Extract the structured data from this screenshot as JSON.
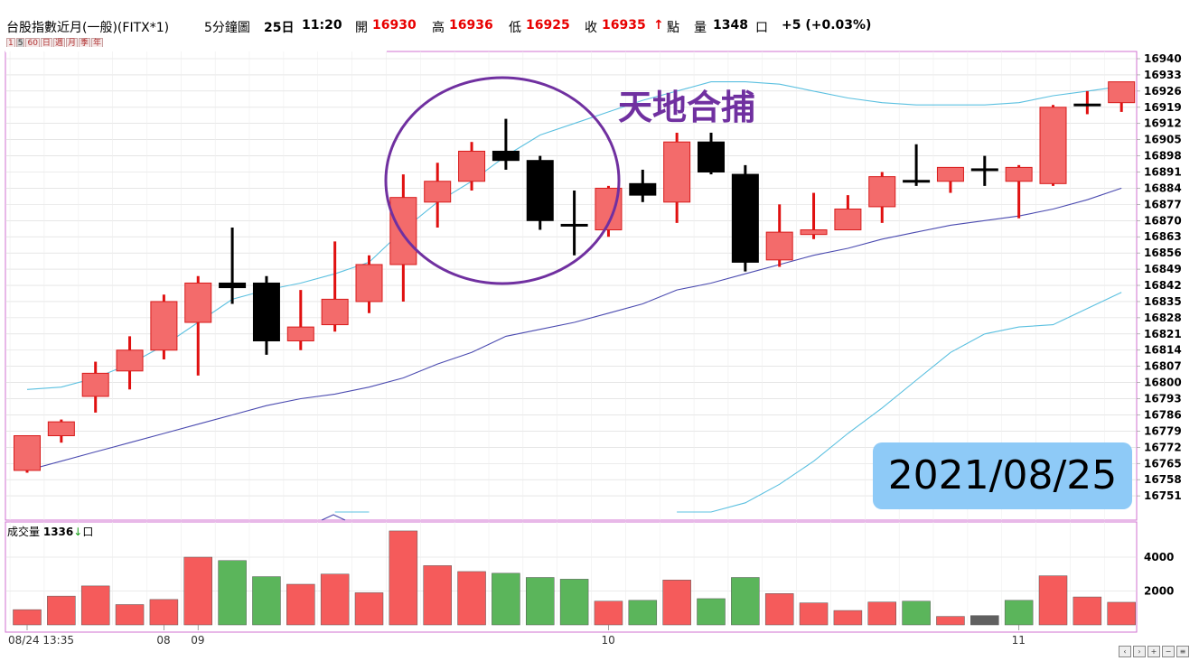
{
  "header": {
    "instrument": "台股指數近月(一般)(FITX*1)",
    "period": "5分鐘圖",
    "day": "25日",
    "time": "11:20",
    "open_label": "開",
    "open_value": "16930",
    "high_label": "高",
    "high_value": "16936",
    "low_label": "低",
    "low_value": "16925",
    "close_label": "收",
    "close_value": "16935",
    "close_arrow": "↑",
    "point_label": "點",
    "volume_label": "量",
    "volume_value": "1348",
    "volume_unit": "口",
    "change": "+5 (+0.03%)"
  },
  "period_buttons": [
    "1",
    "5",
    "60",
    "日",
    "週",
    "月",
    "季",
    "年"
  ],
  "annotation": {
    "title": "天地合捕",
    "date": "2021/08/25"
  },
  "volume_panel": {
    "label": "成交量",
    "value": "1336",
    "arrow": "↓",
    "unit": "口"
  },
  "colors": {
    "up": "#f36b6b",
    "up_border": "#d81b1b",
    "down": "#000000",
    "vol_up": "#f55b5b",
    "vol_down": "#5bb55b",
    "vol_flat": "#606060",
    "upper_band": "#5bc0e0",
    "ma": "#4b4bb0",
    "circle": "#7030a0",
    "grid": "#d8d8d8",
    "frame": "#d070d0"
  },
  "chart_data": {
    "type": "candlestick",
    "ylim": [
      16744,
      16944
    ],
    "y_ticks": [
      16940,
      16933,
      16926,
      16919,
      16912,
      16905,
      16898,
      16891,
      16884,
      16877,
      16870,
      16863,
      16856,
      16849,
      16842,
      16835,
      16828,
      16821,
      16814,
      16807,
      16800,
      16793,
      16786,
      16779,
      16772,
      16765,
      16758,
      16751
    ],
    "x_tick_labels": [
      "08/24 13:35",
      "08",
      "09",
      "10",
      "11"
    ],
    "x_tick_index": [
      0,
      4,
      5,
      17,
      29
    ],
    "candles": [
      {
        "o": 16762,
        "h": 16777,
        "l": 16761,
        "c": 16777
      },
      {
        "o": 16777,
        "h": 16784,
        "l": 16774,
        "c": 16783
      },
      {
        "o": 16794,
        "h": 16809,
        "l": 16787,
        "c": 16804
      },
      {
        "o": 16805,
        "h": 16820,
        "l": 16797,
        "c": 16814
      },
      {
        "o": 16814,
        "h": 16838,
        "l": 16810,
        "c": 16835
      },
      {
        "o": 16826,
        "h": 16846,
        "l": 16803,
        "c": 16843
      },
      {
        "o": 16843,
        "h": 16867,
        "l": 16834,
        "c": 16841
      },
      {
        "o": 16843,
        "h": 16846,
        "l": 16812,
        "c": 16818
      },
      {
        "o": 16818,
        "h": 16840,
        "l": 16814,
        "c": 16824
      },
      {
        "o": 16825,
        "h": 16861,
        "l": 16822,
        "c": 16836
      },
      {
        "o": 16835,
        "h": 16855,
        "l": 16830,
        "c": 16851
      },
      {
        "o": 16851,
        "h": 16890,
        "l": 16835,
        "c": 16880
      },
      {
        "o": 16878,
        "h": 16895,
        "l": 16867,
        "c": 16887
      },
      {
        "o": 16887,
        "h": 16904,
        "l": 16883,
        "c": 16900
      },
      {
        "o": 16900,
        "h": 16914,
        "l": 16892,
        "c": 16896
      },
      {
        "o": 16896,
        "h": 16898,
        "l": 16866,
        "c": 16870
      },
      {
        "o": 16869,
        "h": 16883,
        "l": 16855,
        "c": 16868
      },
      {
        "o": 16866,
        "h": 16885,
        "l": 16863,
        "c": 16884
      },
      {
        "o": 16886,
        "h": 16892,
        "l": 16878,
        "c": 16881
      },
      {
        "o": 16878,
        "h": 16908,
        "l": 16869,
        "c": 16904
      },
      {
        "o": 16904,
        "h": 16908,
        "l": 16890,
        "c": 16891
      },
      {
        "o": 16890,
        "h": 16894,
        "l": 16848,
        "c": 16852
      },
      {
        "o": 16853,
        "h": 16877,
        "l": 16850,
        "c": 16865
      },
      {
        "o": 16864,
        "h": 16882,
        "l": 16862,
        "c": 16866
      },
      {
        "o": 16866,
        "h": 16881,
        "l": 16866,
        "c": 16875
      },
      {
        "o": 16876,
        "h": 16891,
        "l": 16869,
        "c": 16889
      },
      {
        "o": 16888,
        "h": 16903,
        "l": 16885,
        "c": 16887
      },
      {
        "o": 16887,
        "h": 16893,
        "l": 16882,
        "c": 16893
      },
      {
        "o": 16892,
        "h": 16898,
        "l": 16885,
        "c": 16892
      },
      {
        "o": 16887,
        "h": 16894,
        "l": 16871,
        "c": 16893
      },
      {
        "o": 16886,
        "h": 16920,
        "l": 16885,
        "c": 16919
      },
      {
        "o": 16919,
        "h": 16926,
        "l": 16916,
        "c": 16920
      },
      {
        "o": 16921,
        "h": 16930,
        "l": 16917,
        "c": 16930
      }
    ],
    "upper_band": [
      16797,
      16798,
      16802,
      16808,
      16816,
      16826,
      16836,
      16840,
      16843,
      16847,
      16852,
      16866,
      16878,
      16887,
      16898,
      16907,
      16912,
      16917,
      16922,
      16926,
      16930,
      16930,
      16929,
      16926,
      16923,
      16921,
      16920,
      16920,
      16920,
      16921,
      16924,
      16926,
      16928
    ],
    "ma_line": [
      16762,
      16766,
      16770,
      16774,
      16778,
      16782,
      16786,
      16790,
      16793,
      16795,
      16798,
      16802,
      16808,
      16813,
      16820,
      16823,
      16826,
      16830,
      16834,
      16840,
      16843,
      16847,
      16851,
      16855,
      16858,
      16862,
      16865,
      16868,
      16870,
      16872,
      16875,
      16879,
      16884
    ],
    "lower_band": [
      null,
      null,
      null,
      null,
      null,
      null,
      null,
      null,
      null,
      16744,
      16744,
      null,
      null,
      null,
      null,
      null,
      null,
      null,
      null,
      16744,
      16744,
      16748,
      16756,
      16766,
      16778,
      16789,
      16801,
      16813,
      16821,
      16824,
      16825,
      16832,
      16839
    ],
    "volume": [
      {
        "v": 900,
        "d": "up"
      },
      {
        "v": 1700,
        "d": "up"
      },
      {
        "v": 2300,
        "d": "up"
      },
      {
        "v": 1200,
        "d": "up"
      },
      {
        "v": 1500,
        "d": "up"
      },
      {
        "v": 4000,
        "d": "up"
      },
      {
        "v": 3800,
        "d": "down"
      },
      {
        "v": 2850,
        "d": "down"
      },
      {
        "v": 2400,
        "d": "up"
      },
      {
        "v": 3000,
        "d": "up"
      },
      {
        "v": 1900,
        "d": "up"
      },
      {
        "v": 5550,
        "d": "up"
      },
      {
        "v": 3500,
        "d": "up"
      },
      {
        "v": 3150,
        "d": "up"
      },
      {
        "v": 3050,
        "d": "down"
      },
      {
        "v": 2800,
        "d": "down"
      },
      {
        "v": 2700,
        "d": "down"
      },
      {
        "v": 1400,
        "d": "up"
      },
      {
        "v": 1450,
        "d": "down"
      },
      {
        "v": 2650,
        "d": "up"
      },
      {
        "v": 1550,
        "d": "down"
      },
      {
        "v": 2800,
        "d": "down"
      },
      {
        "v": 1850,
        "d": "up"
      },
      {
        "v": 1300,
        "d": "up"
      },
      {
        "v": 850,
        "d": "up"
      },
      {
        "v": 1350,
        "d": "up"
      },
      {
        "v": 1400,
        "d": "down"
      },
      {
        "v": 500,
        "d": "up"
      },
      {
        "v": 550,
        "d": "flat"
      },
      {
        "v": 1450,
        "d": "down"
      },
      {
        "v": 2900,
        "d": "up"
      },
      {
        "v": 1650,
        "d": "up"
      },
      {
        "v": 1336,
        "d": "up"
      }
    ],
    "volume_ticks": [
      4000,
      2000
    ],
    "volume_ylim": [
      0,
      5600
    ]
  }
}
